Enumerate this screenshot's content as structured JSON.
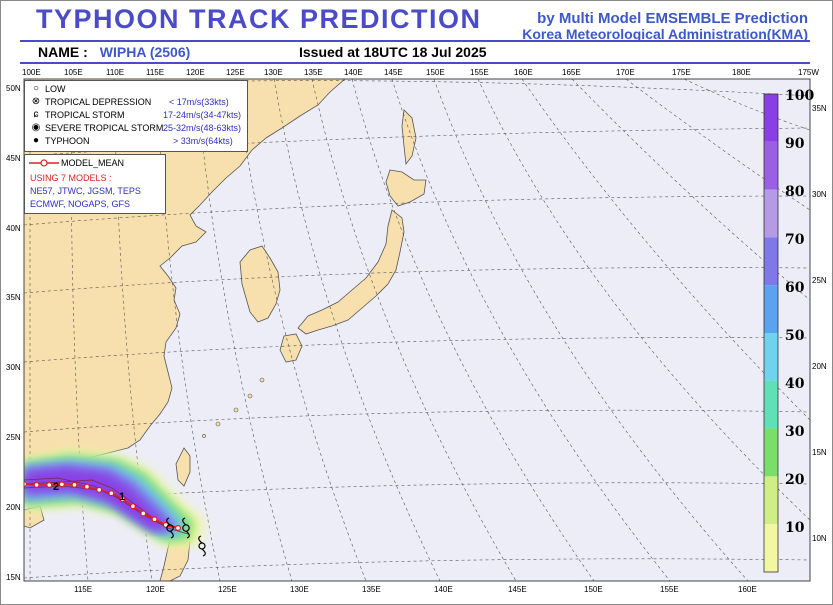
{
  "header": {
    "title": "TYPHOON  TRACK  PREDICTION",
    "byline_1": "by Multi Model EMSEMBLE Prediction",
    "byline_2": "Korea Meteorological Administration(KMA)",
    "name_label": "NAME :",
    "name_value": "WIPHA (2506)",
    "issued": "Issued at  18UTC 18 Jul 2025"
  },
  "axes": {
    "top_lon": [
      "100E",
      "105E",
      "110E",
      "115E",
      "120E",
      "125E",
      "130E",
      "135E",
      "140E",
      "145E",
      "150E",
      "155E",
      "160E",
      "165E",
      "170E",
      "175E",
      "180E",
      "175W"
    ],
    "bottom_lon": [
      "115E",
      "120E",
      "125E",
      "130E",
      "135E",
      "140E",
      "145E",
      "150E",
      "155E",
      "160E"
    ],
    "left_lat": [
      "50N",
      "45N",
      "40N",
      "35N",
      "30N",
      "25N",
      "20N",
      "15N"
    ],
    "right_lat": [
      "35N",
      "30N",
      "25N",
      "20N",
      "15N",
      "10N"
    ]
  },
  "legend": {
    "intensity": [
      {
        "symbol": "low-icon",
        "label": "LOW",
        "range": ""
      },
      {
        "symbol": "tropical-depression-icon",
        "label": "TROPICAL DEPRESSION",
        "range": "< 17m/s(33kts)"
      },
      {
        "symbol": "tropical-storm-icon",
        "label": "TROPICAL STORM",
        "range": "17-24m/s(34-47kts)"
      },
      {
        "symbol": "severe-tropical-storm-icon",
        "label": "SEVERE TROPICAL STORM",
        "range": "25-32m/s(48-63kts)"
      },
      {
        "symbol": "typhoon-icon",
        "label": "TYPHOON",
        "range": "> 33m/s(64kts)"
      }
    ],
    "model_mean_label": "MODEL_MEAN",
    "models_heading": "USING 7 MODELS :",
    "models_line_1": "NE57, JTWC, JGSM, TEPS",
    "models_line_2": "ECMWF, NOGAPS, GFS"
  },
  "colorbar": {
    "labels": [
      "100",
      "90",
      "80",
      "70",
      "60",
      "50",
      "40",
      "30",
      "20",
      "10"
    ],
    "colors": [
      "#8a3fe6",
      "#9b5fe4",
      "#b69ae6",
      "#7e78e8",
      "#5aa3ef",
      "#6fd3ee",
      "#5fe0b6",
      "#7bde6a",
      "#cfef86",
      "#f2f7a4"
    ]
  },
  "track": {
    "mean_color": "#e02020",
    "day_labels": [
      "1",
      "2"
    ]
  },
  "colors": {
    "ocean": "#ededf7",
    "land": "#f7dfae",
    "coast": "#555555",
    "accent": "#4b4bc9"
  }
}
